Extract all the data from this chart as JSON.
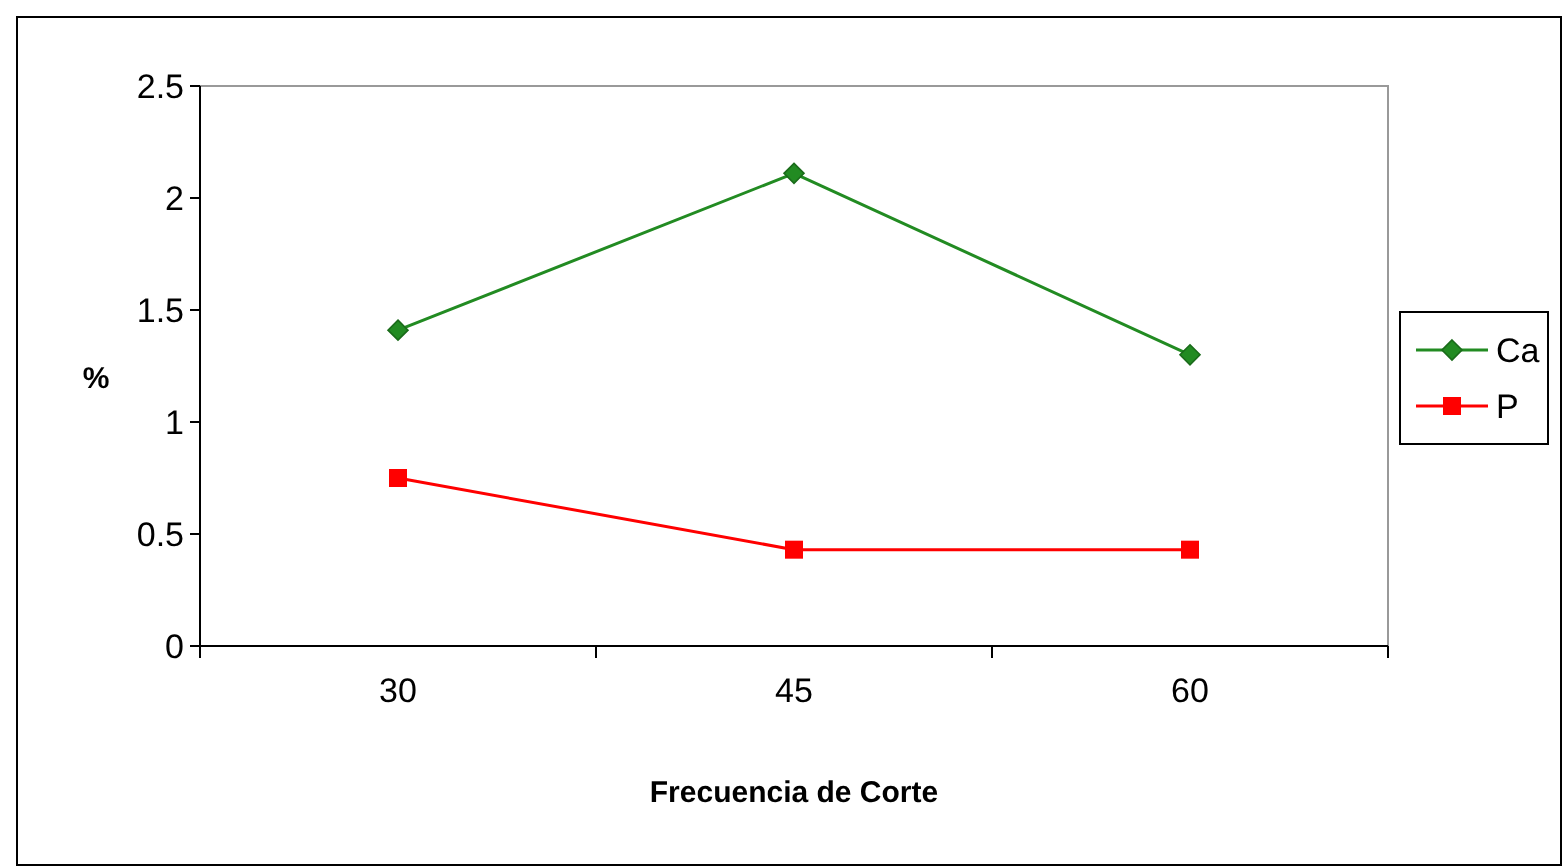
{
  "chart_data": {
    "type": "line",
    "xlabel": "Frecuencia de Corte",
    "ylabel": "%",
    "categories": [
      "30",
      "45",
      "60"
    ],
    "ylim": [
      0,
      2.5
    ],
    "yticks": [
      0,
      0.5,
      1,
      1.5,
      2,
      2.5
    ],
    "grid": false,
    "legend": "right",
    "series": [
      {
        "name": "Ca",
        "color": "#228b22",
        "marker": "diamond",
        "values": [
          1.41,
          2.11,
          1.3
        ]
      },
      {
        "name": "P",
        "color": "#ff0000",
        "marker": "square",
        "values": [
          0.75,
          0.43,
          0.43
        ]
      }
    ]
  }
}
